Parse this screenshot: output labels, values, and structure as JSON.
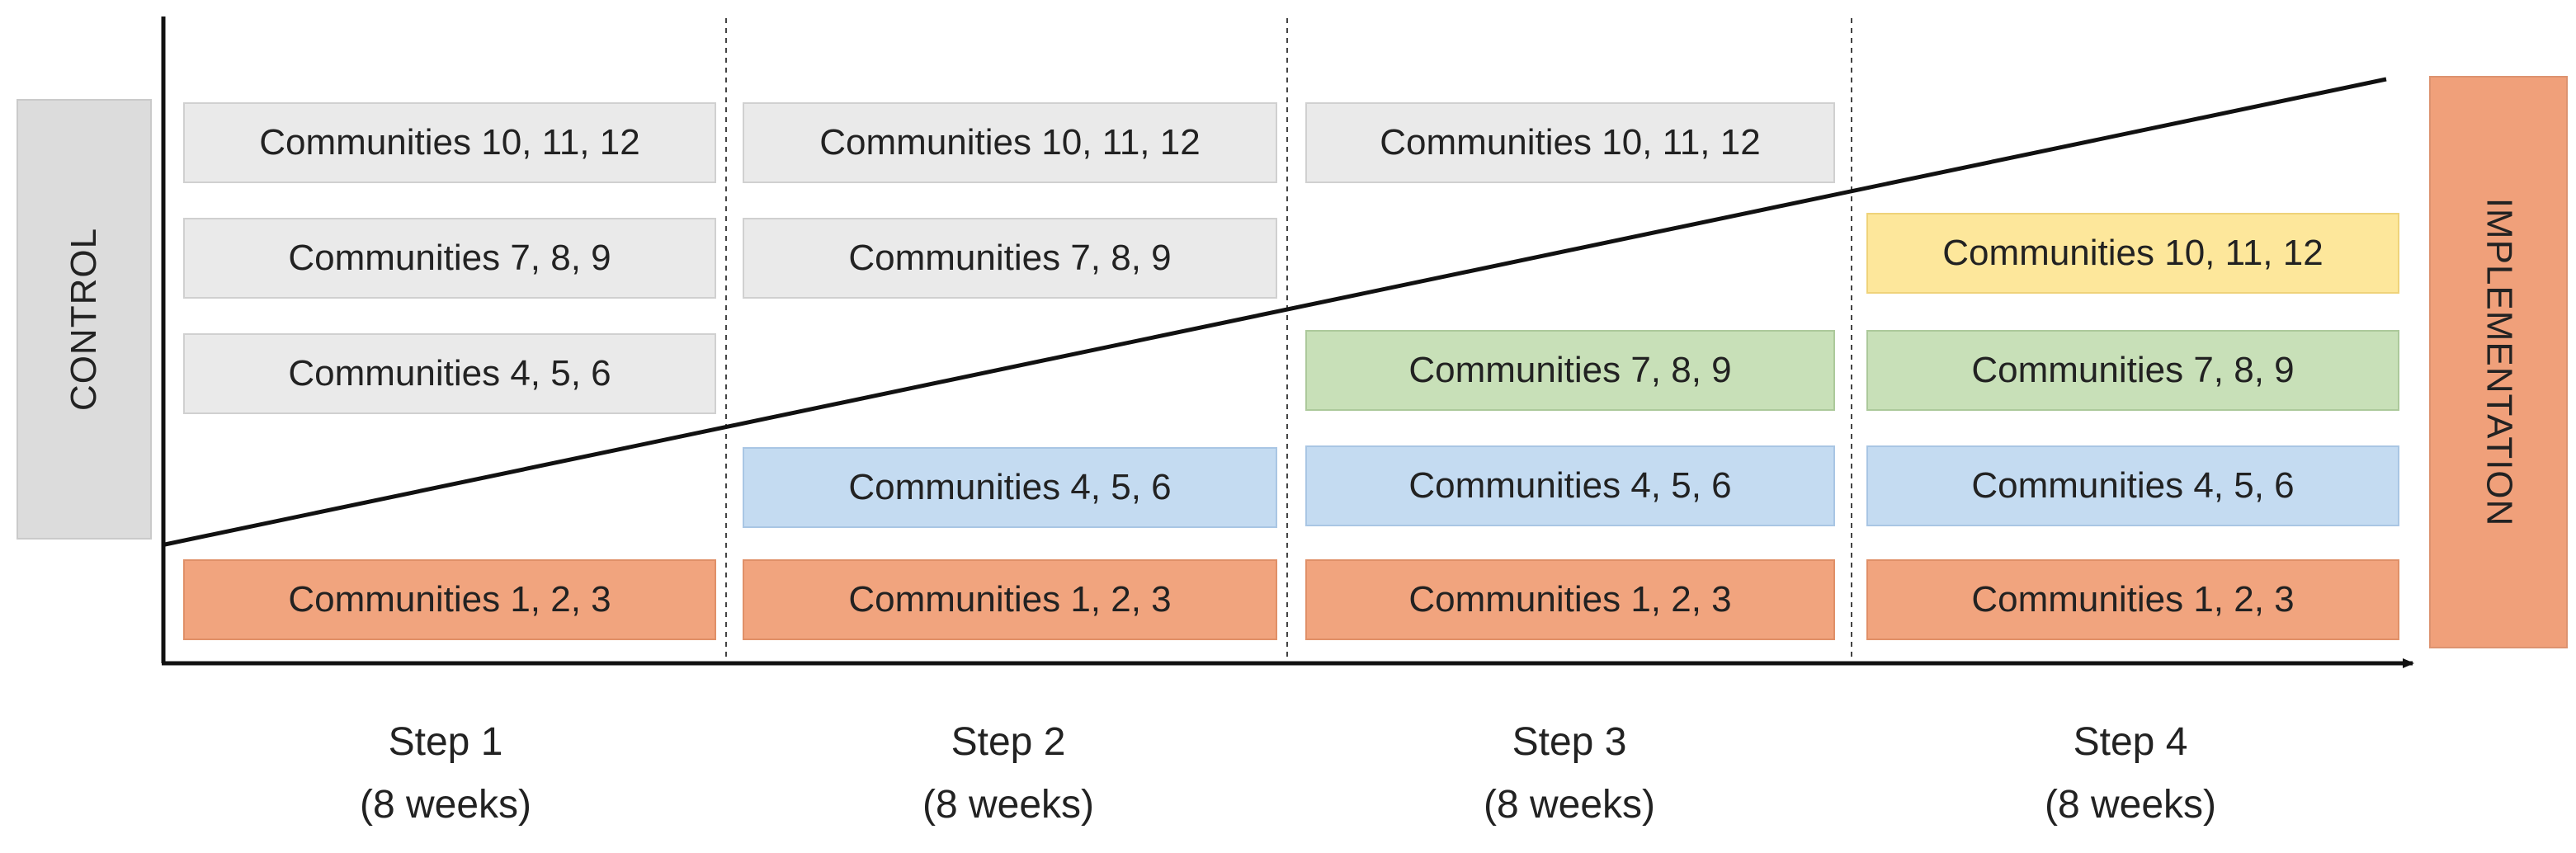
{
  "labels": {
    "control": "CONTROL",
    "implementation": "IMPLEMENTATION"
  },
  "steps": [
    {
      "name": "Step 1",
      "duration": "(8 weeks)"
    },
    {
      "name": "Step 2",
      "duration": "(8 weeks)"
    },
    {
      "name": "Step 3",
      "duration": "(8 weeks)"
    },
    {
      "name": "Step 4",
      "duration": "(8 weeks)"
    }
  ],
  "columns": [
    {
      "groups": {
        "g4": {
          "text": "Communities 10, 11, 12",
          "state": "control"
        },
        "g3": {
          "text": "Communities 7, 8, 9",
          "state": "control"
        },
        "g2": {
          "text": "Communities 4, 5, 6",
          "state": "control"
        },
        "g1": {
          "text": "Communities 1, 2, 3",
          "state": "implementation"
        }
      }
    },
    {
      "groups": {
        "g4": {
          "text": "Communities 10, 11, 12",
          "state": "control"
        },
        "g3": {
          "text": "Communities 7, 8, 9",
          "state": "control"
        },
        "g2": {
          "text": "Communities 4, 5, 6",
          "state": "implementation"
        },
        "g1": {
          "text": "Communities 1, 2, 3",
          "state": "implementation"
        }
      }
    },
    {
      "groups": {
        "g4": {
          "text": "Communities 10, 11, 12",
          "state": "control"
        },
        "g3": {
          "text": "Communities 7, 8, 9",
          "state": "implementation"
        },
        "g2": {
          "text": "Communities 4, 5, 6",
          "state": "implementation"
        },
        "g1": {
          "text": "Communities 1, 2, 3",
          "state": "implementation"
        }
      }
    },
    {
      "groups": {
        "g4": {
          "text": "Communities 10, 11, 12",
          "state": "implementation"
        },
        "g3": {
          "text": "Communities 7, 8, 9",
          "state": "implementation"
        },
        "g2": {
          "text": "Communities 4, 5, 6",
          "state": "implementation"
        },
        "g1": {
          "text": "Communities 1, 2, 3",
          "state": "implementation"
        }
      }
    }
  ],
  "colors": {
    "control": "#eaeaea",
    "group_1": "#f1a47e",
    "group_2": "#c4dbf1",
    "group_3": "#c8e0b8",
    "group_4": "#fde79b"
  }
}
